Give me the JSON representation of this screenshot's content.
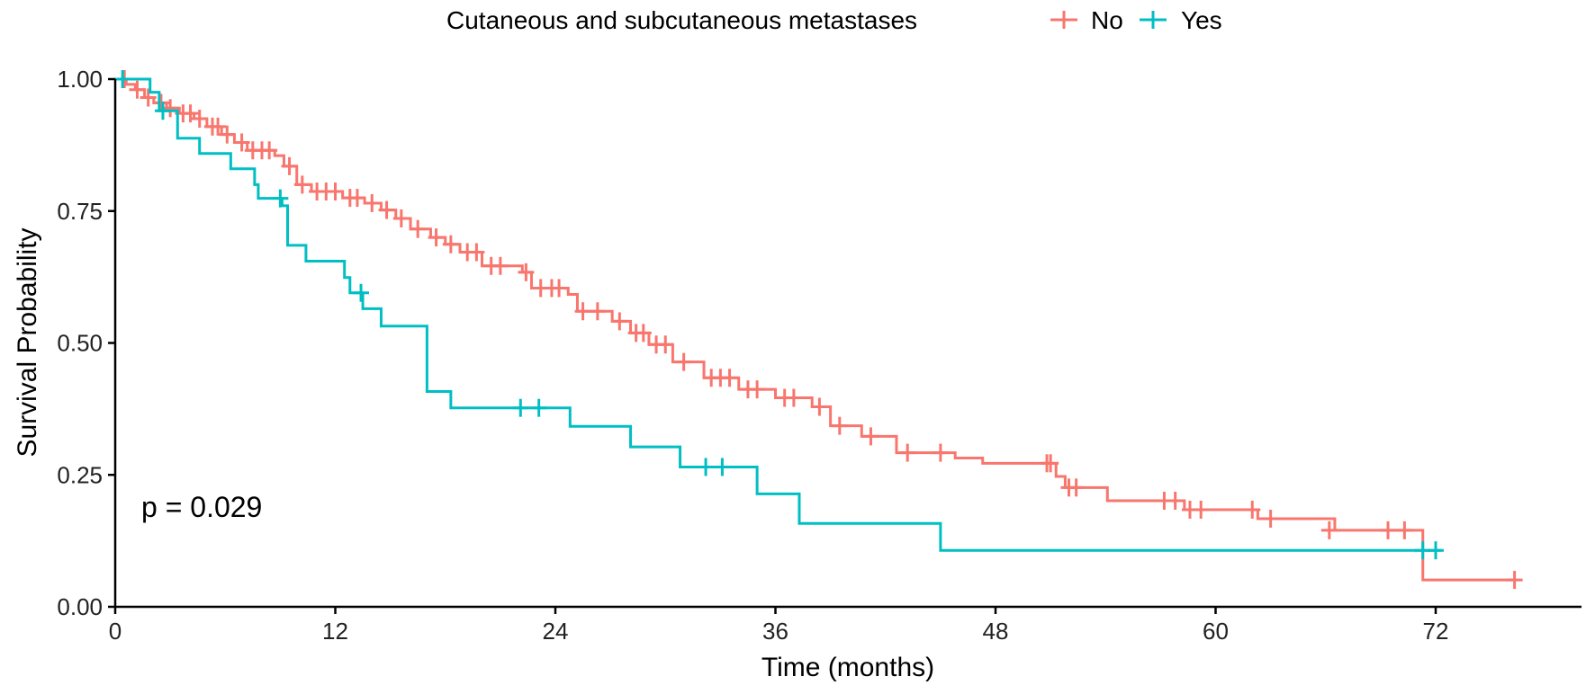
{
  "chart_data": {
    "type": "line",
    "subtype": "kaplan-meier step",
    "title": "",
    "xlabel": "Time (months)",
    "ylabel": "Survival Probability",
    "xlim": [
      0,
      80
    ],
    "ylim": [
      0,
      1
    ],
    "xticks": [
      0,
      12,
      24,
      36,
      48,
      60,
      72
    ],
    "yticks": [
      0,
      0.25,
      0.5,
      0.75,
      1
    ],
    "ytick_labels": [
      "0.00",
      "0.25",
      "0.50",
      "0.75",
      "1.00"
    ],
    "grid": false,
    "legend": {
      "title": "Cutaneous and subcutaneous metastases",
      "placement": "top",
      "entries": [
        "No",
        "Yes"
      ]
    },
    "annotations": [
      {
        "text": "p = 0.029"
      }
    ],
    "series": [
      {
        "name": "No",
        "color": "#F8766D",
        "steps": [
          [
            0,
            1.0
          ],
          [
            0.6,
            0.99
          ],
          [
            1.1,
            0.98
          ],
          [
            1.6,
            0.965
          ],
          [
            2.1,
            0.955
          ],
          [
            2.8,
            0.945
          ],
          [
            3.5,
            0.935
          ],
          [
            4.3,
            0.925
          ],
          [
            5.0,
            0.91
          ],
          [
            5.8,
            0.895
          ],
          [
            6.5,
            0.88
          ],
          [
            7.2,
            0.865
          ],
          [
            8.7,
            0.855
          ],
          [
            9.2,
            0.835
          ],
          [
            9.9,
            0.8
          ],
          [
            10.7,
            0.787
          ],
          [
            12.4,
            0.775
          ],
          [
            13.6,
            0.765
          ],
          [
            14.5,
            0.752
          ],
          [
            15.3,
            0.736
          ],
          [
            16.1,
            0.716
          ],
          [
            17.2,
            0.7
          ],
          [
            18.0,
            0.687
          ],
          [
            18.8,
            0.672
          ],
          [
            20.0,
            0.646
          ],
          [
            22.2,
            0.634
          ],
          [
            22.7,
            0.604
          ],
          [
            24.7,
            0.592
          ],
          [
            25.2,
            0.56
          ],
          [
            27.1,
            0.541
          ],
          [
            28.1,
            0.519
          ],
          [
            29.1,
            0.497
          ],
          [
            30.4,
            0.464
          ],
          [
            32.1,
            0.434
          ],
          [
            34.0,
            0.412
          ],
          [
            36.0,
            0.396
          ],
          [
            38.0,
            0.379
          ],
          [
            39.0,
            0.343
          ],
          [
            40.7,
            0.323
          ],
          [
            42.6,
            0.292
          ],
          [
            45.8,
            0.282
          ],
          [
            47.3,
            0.272
          ],
          [
            51.3,
            0.247
          ],
          [
            51.8,
            0.226
          ],
          [
            54.1,
            0.201
          ],
          [
            58.3,
            0.184
          ],
          [
            62.3,
            0.167
          ],
          [
            66.5,
            0.145
          ],
          [
            71.3,
            0.051
          ]
        ],
        "end": 76.3,
        "censored": [
          [
            0.5,
            1.0
          ],
          [
            1.2,
            0.98
          ],
          [
            1.8,
            0.965
          ],
          [
            2.5,
            0.955
          ],
          [
            3.0,
            0.945
          ],
          [
            3.7,
            0.935
          ],
          [
            4.1,
            0.935
          ],
          [
            4.6,
            0.925
          ],
          [
            5.3,
            0.91
          ],
          [
            5.6,
            0.91
          ],
          [
            6.1,
            0.895
          ],
          [
            6.9,
            0.88
          ],
          [
            7.5,
            0.865
          ],
          [
            8.0,
            0.865
          ],
          [
            8.4,
            0.865
          ],
          [
            9.5,
            0.835
          ],
          [
            10.2,
            0.8
          ],
          [
            11.0,
            0.787
          ],
          [
            11.5,
            0.787
          ],
          [
            12.0,
            0.787
          ],
          [
            12.8,
            0.775
          ],
          [
            13.2,
            0.775
          ],
          [
            14.0,
            0.765
          ],
          [
            14.8,
            0.752
          ],
          [
            15.6,
            0.736
          ],
          [
            16.5,
            0.716
          ],
          [
            17.5,
            0.7
          ],
          [
            18.3,
            0.687
          ],
          [
            19.2,
            0.672
          ],
          [
            19.7,
            0.672
          ],
          [
            20.5,
            0.646
          ],
          [
            21.0,
            0.646
          ],
          [
            22.4,
            0.634
          ],
          [
            23.2,
            0.604
          ],
          [
            23.8,
            0.604
          ],
          [
            24.2,
            0.604
          ],
          [
            25.5,
            0.56
          ],
          [
            26.3,
            0.56
          ],
          [
            27.5,
            0.541
          ],
          [
            28.4,
            0.519
          ],
          [
            28.8,
            0.519
          ],
          [
            29.5,
            0.497
          ],
          [
            30.0,
            0.497
          ],
          [
            31.0,
            0.464
          ],
          [
            32.5,
            0.434
          ],
          [
            33.0,
            0.434
          ],
          [
            33.5,
            0.434
          ],
          [
            34.5,
            0.412
          ],
          [
            35.0,
            0.412
          ],
          [
            36.5,
            0.396
          ],
          [
            37.0,
            0.396
          ],
          [
            38.4,
            0.379
          ],
          [
            39.5,
            0.343
          ],
          [
            41.2,
            0.323
          ],
          [
            43.2,
            0.292
          ],
          [
            45.0,
            0.292
          ],
          [
            50.8,
            0.272
          ],
          [
            51.0,
            0.272
          ],
          [
            52.0,
            0.226
          ],
          [
            52.4,
            0.226
          ],
          [
            57.2,
            0.201
          ],
          [
            57.8,
            0.201
          ],
          [
            58.6,
            0.184
          ],
          [
            59.2,
            0.184
          ],
          [
            62.0,
            0.184
          ],
          [
            63.0,
            0.167
          ],
          [
            66.2,
            0.145
          ],
          [
            69.4,
            0.145
          ],
          [
            70.3,
            0.145
          ],
          [
            76.3,
            0.051
          ]
        ]
      },
      {
        "name": "Yes",
        "color": "#00BFC4",
        "steps": [
          [
            0,
            1.0
          ],
          [
            1.9,
            0.975
          ],
          [
            2.4,
            0.94
          ],
          [
            3.4,
            0.888
          ],
          [
            4.6,
            0.859
          ],
          [
            6.3,
            0.83
          ],
          [
            7.6,
            0.8
          ],
          [
            7.8,
            0.774
          ],
          [
            9.1,
            0.76
          ],
          [
            9.4,
            0.685
          ],
          [
            10.4,
            0.655
          ],
          [
            12.5,
            0.624
          ],
          [
            12.8,
            0.595
          ],
          [
            13.5,
            0.565
          ],
          [
            14.5,
            0.532
          ],
          [
            17.0,
            0.408
          ],
          [
            18.3,
            0.377
          ],
          [
            24.8,
            0.342
          ],
          [
            28.1,
            0.303
          ],
          [
            30.8,
            0.265
          ],
          [
            35.0,
            0.214
          ],
          [
            37.3,
            0.158
          ],
          [
            45.0,
            0.107
          ]
        ],
        "end": 72.3,
        "censored": [
          [
            0.4,
            1.0
          ],
          [
            2.6,
            0.94
          ],
          [
            9.0,
            0.774
          ],
          [
            13.4,
            0.595
          ],
          [
            22.1,
            0.377
          ],
          [
            23.1,
            0.377
          ],
          [
            32.2,
            0.265
          ],
          [
            33.1,
            0.265
          ],
          [
            71.3,
            0.107
          ],
          [
            72.0,
            0.107
          ]
        ]
      }
    ]
  }
}
